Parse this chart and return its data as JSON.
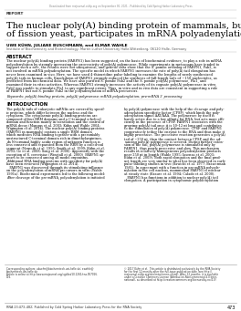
{
  "top_banner": "Downloaded from rnajournal.cshlp.org on September 30, 2021 - Published by Cold Spring Harbor Laboratory Press",
  "report_label": "REPORT",
  "title_line1": "The nuclear poly(A) binding protein of mammals, but not",
  "title_line2": "of fission yeast, participates in mRNA polyadenylation",
  "authors": "UWE KÜHN, JULIANE BUSCHMANN, and ELMAR WAHLE",
  "affiliation": "Institute of Biochemistry and Biotechnology, Martin Luther University Halle-Wittenberg, 06120 Halle, Germany",
  "abstract_title": "ABSTRACT",
  "abstract_lines": [
    "The nuclear poly(A) binding protein (PABPN1) has been suggested, on the basis of biochemical evidence, to play a role in mRNA",
    "polyadenylation by strongly increasing the processivity of poly(A) polymerase. While experiments in metazoans have tended to",
    "support such a role, the results were not unequivocal, and genetic data show that the S. pombe ortholog of PABPN1, Pab2, is",
    "not involved in mRNA polyadenylation. The specific model in which PABPN1 increases the rate of poly(A) tail elongation has",
    "never been examined in vivo. Here, we have used 4-thiouridine pulse-labeling to examine the lengths of newly synthesized",
    "poly(A) tails in human cells. Knockdown of PABPN1 strongly reduced the synthesis of full-length tails of ~150 nucleotides, as",
    "predicted from biochemical data. We have also purified S. pombe Pab2 and the S. pombe poly(A) polymerase, Pla1, and",
    "examined their in vitro activities. Whereas PABPN1 strongly increases the activity of its cognate poly(A) polymerase in vitro,",
    "Pab2 was unable to stimulate Pla1 to any significant extent. Thus, in vitro and in vivo data are consistent in supporting a role",
    "of PABPN1 but not S. pombe Pab2 in the polyadenylation of mRNA precursors."
  ],
  "keywords": "Keywords: poly(A) binding protein; poly(A) polymerase; mRNA polyadenylation; pre-mRNA 3′ processing",
  "intro_title": "INTRODUCTION",
  "col1_lines": [
    "The poly(A) tails of eukaryotic mRNAs are covered by specif-",
    "ic proteins, which differ between the nucleus and the",
    "cytoplasm. The cytoplasmic poly(A) binding proteins are",
    "composed of four RRM domains and a C-terminal α-helical",
    "domain and function mainly in translation and the control of",
    "mRNA decay (Mangus et al. 2003; Kühn and Wahle 2004;",
    "Wigington et al. 2014). The nuclear poly(A) binding proteins",
    "(PABPN1 in mammals) contain a single RRM domain,",
    "which mediates RNA binding together with a presumably",
    "unstructured C-terminal domain rich in dimethylarginines.",
    "An N-terminal highly acidic region of unknown function is",
    "less conserved and separated from the RRM by a coiled-coil",
    "segment (Nemeth et al. 1995; Smith et al. 1999; Kühn et al.",
    "2003; Ge et al. 2008; Song et al. 2008). Apparently with the",
    "exception of S. cerevisiae (Winstall et al. 2000), PABPN1 ap-",
    "pears to be conserved among all model organisms.",
    "Additional RNA binding proteins with specificity for poly(A)",
    "have been reviewed (Wigington et al. 2014).",
    "   PABPN1 was discovered through its stimulating influence",
    "on the polyadenylation of mRNA precursors in vitro (Wahle",
    "1991a). Biochemical experiments led to the following model:",
    "After cleavage of the pre-mRNA, polyadenylation is initiated"
  ],
  "col2_lines": [
    "by poly(A) polymerase with the help of the cleavage and poly-",
    "adenylation specificity factor (CPSF), which binds the poly-",
    "adenylation signal AAUAAA. The polymerase by itself is",
    "barely active due to a low affinity for RNA, but acts more effi-",
    "ciently in the presence of CPSF. PABPN1 associates with the",
    "growing poly(A) tail once it is 10–12 nt long and contributes",
    "to the stimulation of poly(A) polymerase. CPSF and PABPN1",
    "cooperatively tether the enzyme to the RNA and thus make it",
    "highly processive. The processive reaction generates a poly(A)",
    "tail of ~250 nt, then the contact between CPSF and the ad-",
    "vancing poly(A) polymerase is severed. During further exten-",
    "sion of the tail, poly(A) polymerase is stimulated only by",
    "PABPN1, thus poorly processive and slow. This mechanism",
    "results in relatively homogeneous polyadenylation products",
    "near 250 nt in length (Wahle 1995; Iasenza et al. 2003;",
    "Kühn et al. 2009). Both rapid elongation and the final prod-",
    "uct length are very similar to what has been observed in early",
    "pulse-labeling studies in vivo (Sawicki et al. 1977; Brawerman",
    "1981). In agreement with a function in pre-mRNA polyade-",
    "nylation in the cell nucleus, mammalian PABPN1 is nuclear",
    "at steady state (Krause et al. 1994; Calado et al. 2000).",
    "   PABPN1 has functions in addition to nuclear poly(A) tail",
    "elongation. A participation in cytoplasmic polyadenylation"
  ],
  "footnote_left_lines": [
    "Corresponding authors: ukuehn@biochemtech.uni-halle.de; ewahle@",
    "biochemtech.uni-halle.de",
    "Article is online at http://www.rnajournal.org/cgi/doi/10.1261/rna.057026.",
    "116."
  ],
  "footnote_right_lines": [
    "© 2017 Kühn et al.  This article is distributed exclusively by the RNA Society",
    "for the first 12 months after the full-issue publication date (see http://",
    "rnajournal.cshlp.org/site/misc/terms.xhtml). After 12 months, it is available",
    "under a Creative Commons License (Attribution-NonCommercial 4.0 Inter-",
    "national), as described at http://creativecommons.org/licenses/by-nc/4.0/."
  ],
  "bottom_left": "RNA 23:473–482; Published by Cold Spring Harbor Laboratory Press for the RNA Society",
  "bottom_right": "473"
}
